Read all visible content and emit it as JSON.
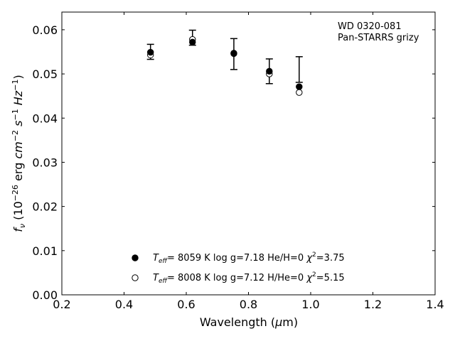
{
  "chart_data": {
    "type": "scatter",
    "xlabel": "Wavelength (μm)",
    "ylabel": "f_ν (10^-26 erg cm^-2 s^-1 Hz^-1)",
    "xlim": [
      0.2,
      1.4
    ],
    "ylim": [
      0.0,
      0.064
    ],
    "x_ticks": [
      "0.2",
      "0.4",
      "0.6",
      "0.8",
      "1.0",
      "1.2",
      "1.4"
    ],
    "y_ticks": [
      "0.00",
      "0.01",
      "0.02",
      "0.03",
      "0.04",
      "0.05",
      "0.06"
    ],
    "annotation": [
      "WD 0320-081",
      "Pan-STARRS grizy"
    ],
    "observed": {
      "x": [
        0.485,
        0.62,
        0.753,
        0.867,
        0.963
      ],
      "y": [
        0.055,
        0.0582,
        0.0545,
        0.0506,
        0.051
      ],
      "yerr": [
        0.0017,
        0.0017,
        0.0035,
        0.0028,
        0.0029
      ]
    },
    "series": [
      {
        "name": "T_eff= 8059 K  log g=7.18  He/H=0  χ²=3.75",
        "marker": "filled-circle",
        "x": [
          0.485,
          0.62,
          0.753,
          0.867,
          0.963
        ],
        "y": [
          0.0549,
          0.0572,
          0.0547,
          0.0506,
          0.0471
        ]
      },
      {
        "name": "T_eff= 8008 K  log g=7.12  H/He=0  χ²=5.15",
        "marker": "open-circle",
        "x": [
          0.485,
          0.62,
          0.753,
          0.867,
          0.963
        ],
        "y": [
          0.0543,
          0.0578,
          0.0546,
          0.05,
          0.0458
        ]
      }
    ],
    "legend": {
      "placement": "lower-center",
      "entries": [
        {
          "teff": "8059 K",
          "logg": "log g=7.18",
          "comp": "He/H=0",
          "chi": "=3.75"
        },
        {
          "teff": "8008 K",
          "logg": "log g=7.12",
          "comp": "H/He=0",
          "chi": "=5.15"
        }
      ]
    }
  }
}
